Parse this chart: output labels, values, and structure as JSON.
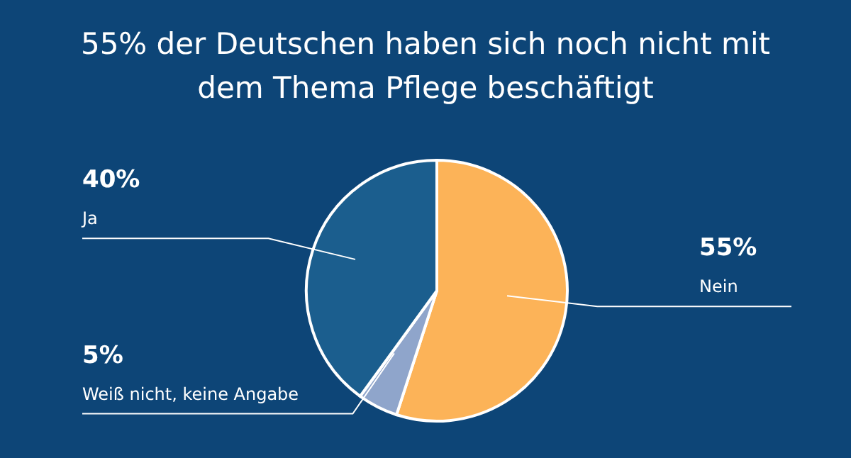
{
  "chart_data": {
    "type": "pie",
    "title": "55% der Deutschen haben sich noch nicht mit dem Thema Pflege beschäftigt",
    "categories": [
      "Nein",
      "Weiß nicht, keine Angabe",
      "Ja"
    ],
    "values": [
      55,
      5,
      40
    ],
    "value_labels": [
      "55%",
      "5%",
      "40%"
    ],
    "colors": [
      "#fcb358",
      "#8fa5cb",
      "#1b5e8e"
    ]
  }
}
